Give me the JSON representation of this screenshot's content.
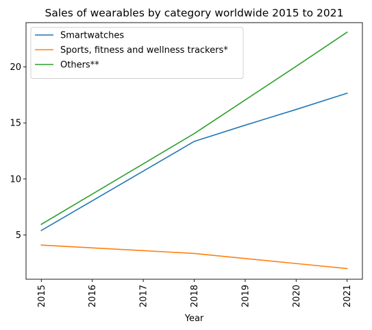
{
  "chart_data": {
    "type": "line",
    "title": "Sales of wearables by category worldwide 2015 to 2021",
    "xlabel": "Year",
    "ylabel": "",
    "x": [
      2015,
      2016,
      2017,
      2018,
      2019,
      2020,
      2021
    ],
    "xlim": [
      2014.7,
      2021.3
    ],
    "ylim": [
      1.05,
      23.95
    ],
    "yticks": [
      5,
      10,
      15,
      20
    ],
    "grid": false,
    "legend_position": "top-left",
    "series": [
      {
        "name": "Smartwatches",
        "color": "#1f77b4",
        "values": [
          5.4,
          8.05,
          10.7,
          13.35,
          14.8,
          16.2,
          17.65
        ]
      },
      {
        "name": "Sports, fitness and wellness trackers*",
        "color": "#ff7f0e",
        "values": [
          4.1,
          3.85,
          3.6,
          3.35,
          2.9,
          2.45,
          2.0
        ]
      },
      {
        "name": "Others**",
        "color": "#2ca02c",
        "values": [
          5.95,
          8.65,
          11.35,
          14.05,
          17.05,
          20.05,
          23.1
        ]
      }
    ]
  }
}
